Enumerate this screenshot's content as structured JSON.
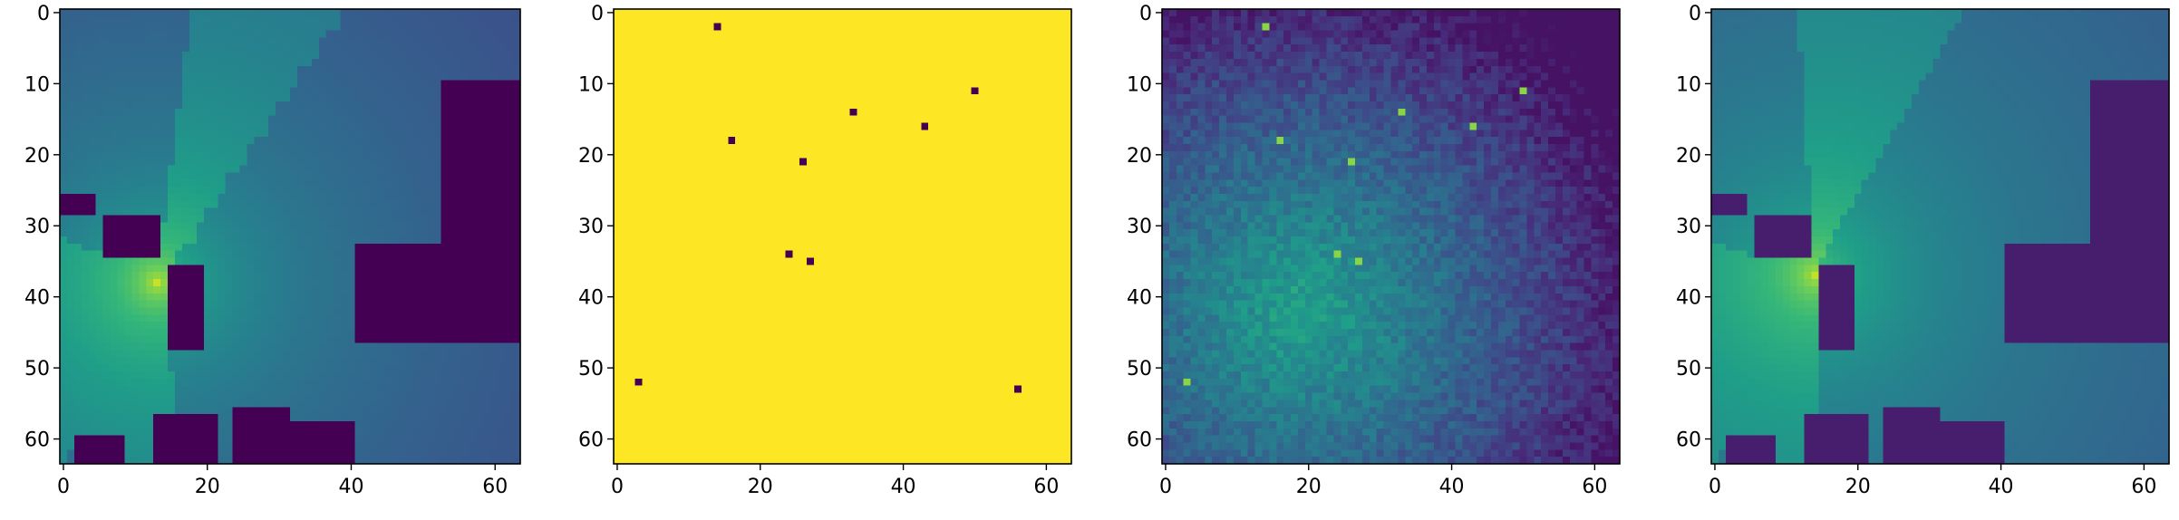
{
  "chart_data": [
    {
      "type": "heatmap",
      "panel": "building-radio-map",
      "grid_size": 64,
      "xlim": [
        0,
        63
      ],
      "ylim": [
        63,
        0
      ],
      "xticks": [
        0,
        20,
        40,
        60
      ],
      "yticks": [
        0,
        10,
        20,
        30,
        40,
        50,
        60
      ],
      "colormap": "viridis",
      "transmitter": [
        13,
        38
      ],
      "buildings": [
        [
          0,
          26,
          4,
          28
        ],
        [
          6,
          29,
          13,
          34
        ],
        [
          15,
          36,
          19,
          47
        ],
        [
          41,
          33,
          63,
          46
        ],
        [
          53,
          10,
          63,
          33
        ],
        [
          2,
          60,
          8,
          63
        ],
        [
          13,
          57,
          21,
          63
        ],
        [
          24,
          56,
          31,
          63
        ],
        [
          31,
          58,
          40,
          63
        ]
      ]
    },
    {
      "type": "heatmap",
      "panel": "sample-mask",
      "grid_size": 64,
      "xlim": [
        0,
        63
      ],
      "ylim": [
        63,
        0
      ],
      "xticks": [
        0,
        20,
        40,
        60
      ],
      "yticks": [
        0,
        10,
        20,
        30,
        40,
        50,
        60
      ],
      "colormap": "viridis",
      "background_value": 1,
      "sample_value": 0,
      "samples": [
        [
          14,
          2
        ],
        [
          50,
          11
        ],
        [
          33,
          14
        ],
        [
          43,
          16
        ],
        [
          16,
          18
        ],
        [
          26,
          21
        ],
        [
          24,
          34
        ],
        [
          27,
          35
        ],
        [
          3,
          52
        ],
        [
          56,
          53
        ]
      ]
    },
    {
      "type": "heatmap",
      "panel": "noisy-field",
      "grid_size": 64,
      "xlim": [
        0,
        63
      ],
      "ylim": [
        63,
        0
      ],
      "xticks": [
        0,
        20,
        40,
        60
      ],
      "yticks": [
        0,
        10,
        20,
        30,
        40,
        50,
        60
      ],
      "colormap": "viridis",
      "peak_center": [
        19,
        42
      ],
      "highlighted": [
        [
          14,
          2
        ],
        [
          50,
          11
        ],
        [
          33,
          14
        ],
        [
          43,
          16
        ],
        [
          16,
          18
        ],
        [
          26,
          21
        ],
        [
          24,
          34
        ],
        [
          27,
          35
        ],
        [
          3,
          52
        ]
      ]
    },
    {
      "type": "heatmap",
      "panel": "predicted-radio-map",
      "grid_size": 64,
      "xlim": [
        0,
        63
      ],
      "ylim": [
        63,
        0
      ],
      "xticks": [
        0,
        20,
        40,
        60
      ],
      "yticks": [
        0,
        10,
        20,
        30,
        40,
        50,
        60
      ],
      "colormap": "viridis",
      "transmitter": [
        14,
        37
      ]
    }
  ],
  "colors": {
    "viridis_low": "#440154",
    "viridis_high": "#fde725",
    "mask_yellow": "#fde725",
    "mask_dot": "#440154",
    "axis": "#000000",
    "background": "#ffffff"
  }
}
